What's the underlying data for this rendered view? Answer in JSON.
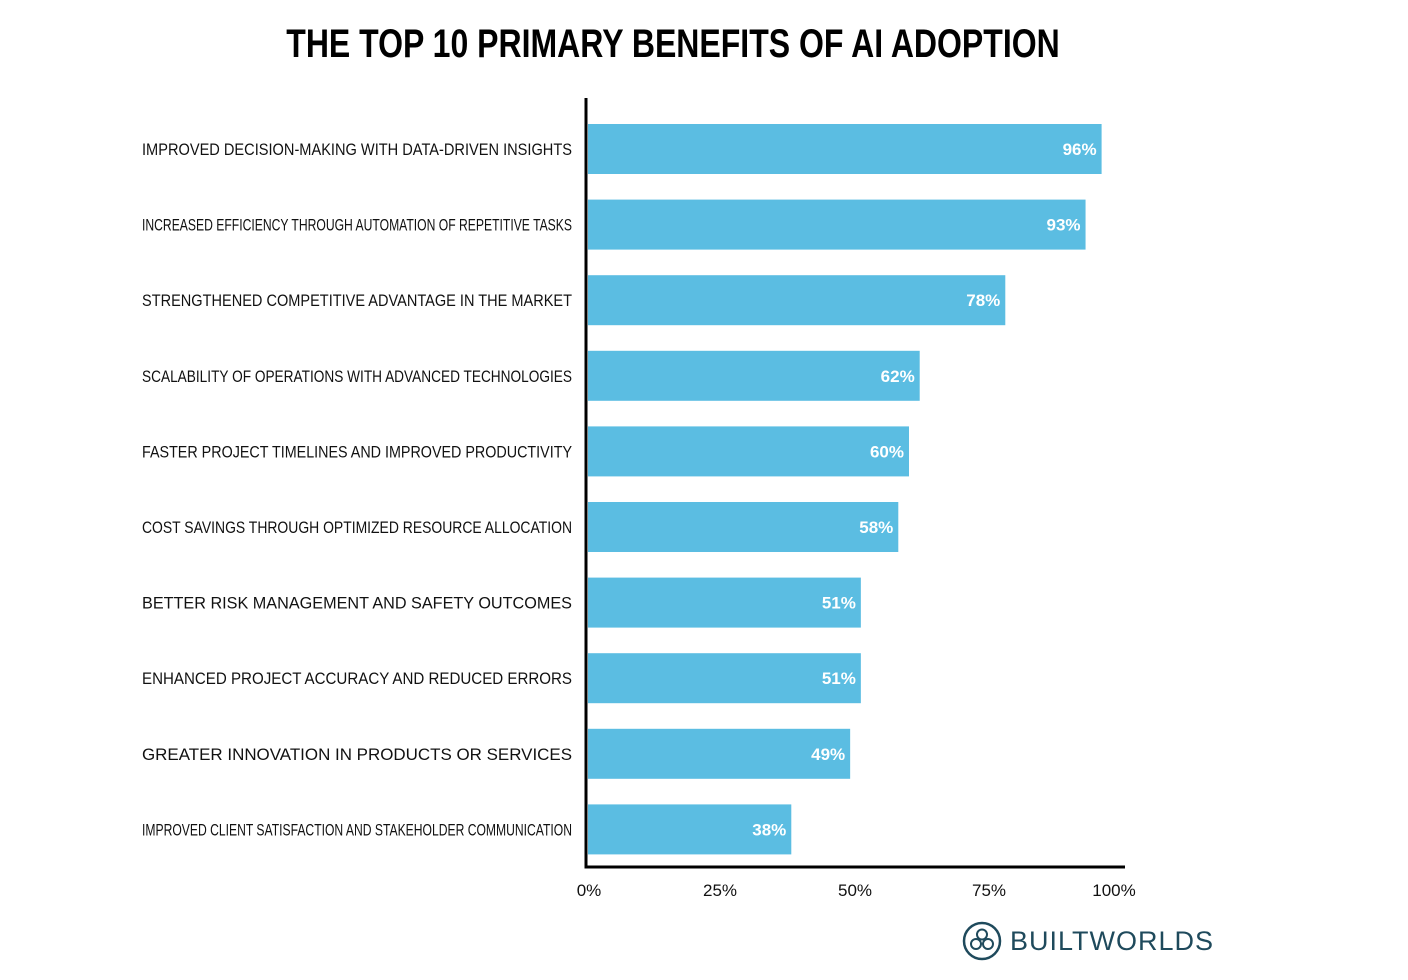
{
  "chart_data": {
    "type": "bar",
    "orientation": "horizontal",
    "title": "THE TOP 10 PRIMARY BENEFITS OF AI ADOPTION",
    "categories": [
      "IMPROVED DECISION-MAKING WITH DATA-DRIVEN INSIGHTS",
      "INCREASED EFFICIENCY THROUGH AUTOMATION OF REPETITIVE TASKS",
      "STRENGTHENED COMPETITIVE ADVANTAGE IN THE MARKET",
      "SCALABILITY OF OPERATIONS WITH ADVANCED TECHNOLOGIES",
      "FASTER PROJECT TIMELINES AND IMPROVED PRODUCTIVITY",
      "COST SAVINGS THROUGH OPTIMIZED RESOURCE ALLOCATION",
      "BETTER RISK MANAGEMENT AND SAFETY OUTCOMES",
      "ENHANCED PROJECT ACCURACY AND REDUCED ERRORS",
      "GREATER INNOVATION IN PRODUCTS OR SERVICES",
      "IMPROVED CLIENT SATISFACTION AND STAKEHOLDER COMMUNICATION"
    ],
    "values": [
      96,
      93,
      78,
      62,
      60,
      58,
      51,
      51,
      49,
      38
    ],
    "value_labels": [
      "96%",
      "93%",
      "78%",
      "62%",
      "60%",
      "58%",
      "51%",
      "51%",
      "49%",
      "38%"
    ],
    "xlim": [
      0,
      100
    ],
    "x_ticks": [
      0,
      25,
      50,
      75,
      100
    ],
    "x_tick_labels": [
      "0%",
      "25%",
      "50%",
      "75%",
      "100%"
    ],
    "grid": false,
    "legend": "none",
    "bar_color": "#5bbde2"
  },
  "brand": {
    "name": "BUILTWORLDS",
    "logo_icon": "builtworlds-logo-icon",
    "color": "#1f4a5c"
  }
}
